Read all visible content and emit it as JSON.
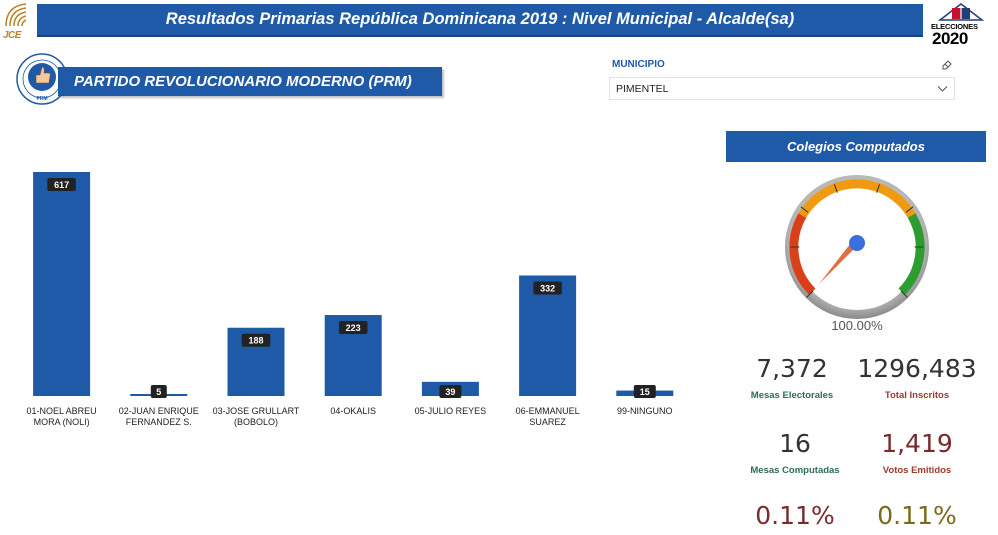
{
  "header": {
    "title": "Resultados Primarias República Dominicana 2019 : Nivel Municipal - Alcalde(sa)",
    "jce_logo_text": "JCE",
    "elecciones_label": "ELECCIONES",
    "elecciones_year": "2020"
  },
  "party": {
    "name": "PARTIDO REVOLUCIONARIO MODERNO (PRM)",
    "logo_short": "PRM"
  },
  "filter": {
    "label": "MUNICIPIO",
    "selected": "PIMENTEL"
  },
  "chart_data": {
    "type": "bar",
    "categories": [
      [
        "01-NOEL ABREU",
        "MORA (NOLI)"
      ],
      [
        "02-JUAN ENRIQUE",
        "FERNANDEZ S."
      ],
      [
        "03-JOSE GRULLART",
        "(BOBOLO)"
      ],
      [
        "04-OKALIS"
      ],
      [
        "05-JULIO REYES"
      ],
      [
        "06-EMMANUEL",
        "SUAREZ"
      ],
      [
        "99-NINGUNO"
      ]
    ],
    "values": [
      617,
      5,
      188,
      223,
      39,
      332,
      15
    ],
    "ylim": [
      0,
      617
    ],
    "color": "#1f5aa8"
  },
  "colegios": {
    "title": "Colegios Computados",
    "percent_label": "100.00%",
    "value": 1.0
  },
  "kpis": {
    "mesas_electorales": {
      "value": "7,372",
      "label": "Mesas Electorales"
    },
    "total_inscritos": {
      "value": "1296,483",
      "label": "Total Inscritos"
    },
    "mesas_computadas": {
      "value": "16",
      "label": "Mesas Computadas"
    },
    "votos_emitidos": {
      "value": "1,419",
      "label": "Votos Emitidos"
    },
    "pct_left": {
      "value": "0.11%"
    },
    "pct_right": {
      "value": "0.11%"
    }
  },
  "colors": {
    "brand_blue": "#1f5aa8",
    "label_green": "#2e6b57",
    "label_red": "#9b3b2e",
    "value_red": "#7a2a2a",
    "value_olive": "#7a6a1a"
  }
}
